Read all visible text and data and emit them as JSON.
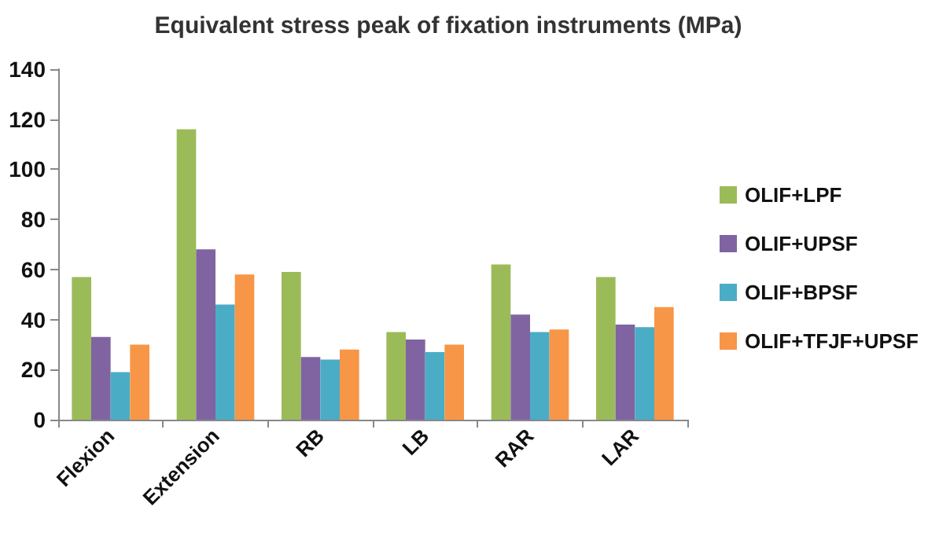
{
  "chart_data": {
    "type": "bar",
    "title": "Equivalent stress peak of fixation instruments (MPa)",
    "categories": [
      "Flexion",
      "Extension",
      "RB",
      "LB",
      "RAR",
      "LAR"
    ],
    "series": [
      {
        "name": "OLIF+LPF",
        "color": "#9bbb59",
        "values": [
          57,
          116,
          59,
          35,
          62,
          57
        ]
      },
      {
        "name": "OLIF+UPSF",
        "color": "#8064a2",
        "values": [
          33,
          68,
          25,
          32,
          42,
          38
        ]
      },
      {
        "name": "OLIF+BPSF",
        "color": "#4bacc6",
        "values": [
          19,
          46,
          24,
          27,
          35,
          37
        ]
      },
      {
        "name": "OLIF+TFJF+UPSF",
        "color": "#f79646",
        "values": [
          30,
          58,
          28,
          30,
          36,
          45
        ]
      }
    ],
    "ylim": [
      0,
      140
    ],
    "yticks": [
      0,
      20,
      40,
      60,
      80,
      100,
      120,
      140
    ],
    "grid": false,
    "legend": "right"
  }
}
